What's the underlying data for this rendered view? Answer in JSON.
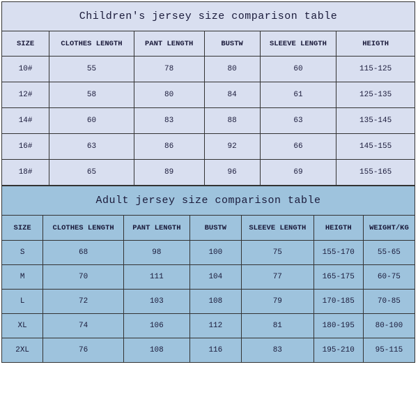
{
  "children": {
    "title": "Children's jersey size comparison table",
    "columns": [
      "SIZE",
      "CLOTHES LENGTH",
      "PANT LENGTH",
      "BUSTW",
      "SLEEVE LENGTH",
      "HEIGTH"
    ],
    "col_widths_pct": [
      11.5,
      20.5,
      17,
      13.5,
      18.5,
      19
    ],
    "rows": [
      [
        "10#",
        "55",
        "78",
        "80",
        "60",
        "115-125"
      ],
      [
        "12#",
        "58",
        "80",
        "84",
        "61",
        "125-135"
      ],
      [
        "14#",
        "60",
        "83",
        "88",
        "63",
        "135-145"
      ],
      [
        "16#",
        "63",
        "86",
        "92",
        "66",
        "145-155"
      ],
      [
        "18#",
        "65",
        "89",
        "96",
        "69",
        "155-165"
      ]
    ],
    "bg_color": "#d9dff0",
    "border_color": "#333333",
    "text_color": "#1a1a3a",
    "title_fontsize": 15,
    "header_fontsize": 10.5,
    "cell_fontsize": 11
  },
  "adult": {
    "title": "Adult jersey size comparison table",
    "columns": [
      "SIZE",
      "CLOTHES LENGTH",
      "PANT LENGTH",
      "BUSTW",
      "SLEEVE LENGTH",
      "HEIGTH",
      "WEIGHT/KG"
    ],
    "col_widths_pct": [
      10,
      19.5,
      16,
      12.5,
      17.5,
      12,
      12.5
    ],
    "rows": [
      [
        "S",
        "68",
        "98",
        "100",
        "75",
        "155-170",
        "55-65"
      ],
      [
        "M",
        "70",
        "111",
        "104",
        "77",
        "165-175",
        "60-75"
      ],
      [
        "L",
        "72",
        "103",
        "108",
        "79",
        "170-185",
        "70-85"
      ],
      [
        "XL",
        "74",
        "106",
        "112",
        "81",
        "180-195",
        "80-100"
      ],
      [
        "2XL",
        "76",
        "108",
        "116",
        "83",
        "195-210",
        "95-115"
      ]
    ],
    "bg_color": "#9ec3dd",
    "border_color": "#333333",
    "text_color": "#1a1a3a",
    "title_fontsize": 15,
    "header_fontsize": 10.5,
    "cell_fontsize": 11
  },
  "font_family": "Courier New"
}
